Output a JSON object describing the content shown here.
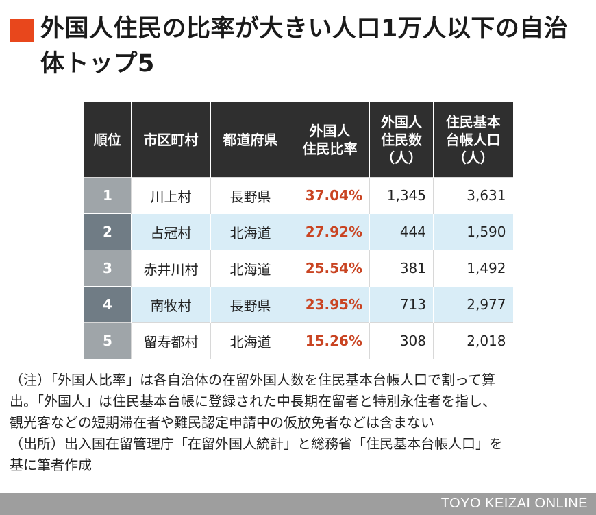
{
  "title": "外国人住民の比率が大きい人口1万人以下の自治体トップ5",
  "chart_data": {
    "type": "table",
    "columns": [
      "順位",
      "市区町村",
      "都道府県",
      "外国人住民比率",
      "外国人住民数（人）",
      "住民基本台帳人口（人）"
    ],
    "header_lines": [
      [
        "順位"
      ],
      [
        "市区町村"
      ],
      [
        "都道府県"
      ],
      [
        "外国人",
        "住民比率"
      ],
      [
        "外国人",
        "住民数",
        "（人）"
      ],
      [
        "住民基本",
        "台帳人口",
        "（人）"
      ]
    ],
    "rows": [
      {
        "rank": "1",
        "municipality": "川上村",
        "prefecture": "長野県",
        "ratio": "37.04%",
        "foreign": "1,345",
        "population": "3,631"
      },
      {
        "rank": "2",
        "municipality": "占冠村",
        "prefecture": "北海道",
        "ratio": "27.92%",
        "foreign": "444",
        "population": "1,590"
      },
      {
        "rank": "3",
        "municipality": "赤井川村",
        "prefecture": "北海道",
        "ratio": "25.54%",
        "foreign": "381",
        "population": "1,492"
      },
      {
        "rank": "4",
        "municipality": "南牧村",
        "prefecture": "長野県",
        "ratio": "23.95%",
        "foreign": "713",
        "population": "2,977"
      },
      {
        "rank": "5",
        "municipality": "留寿都村",
        "prefecture": "北海道",
        "ratio": "15.26%",
        "foreign": "308",
        "population": "2,018"
      }
    ]
  },
  "notes": [
    "（注）「外国人比率」は各自治体の在留外国人数を住民基本台帳人口で割って算",
    "出。「外国人」は住民基本台帳に登録された中長期在留者と特別永住者を指し、",
    "観光客などの短期滞在者や難民認定申請中の仮放免者などは含まない",
    "（出所）出入国在留管理庁「在留外国人統計」と総務省「住民基本台帳人口」を",
    "基に筆者作成"
  ],
  "footer": "TOYO KEIZAI ONLINE",
  "colors": {
    "title_mark": "#e8471c",
    "header_bg": "#2f2f2f",
    "ratio_text": "#c94422",
    "rank_odd": "#9fa5a9",
    "rank_even": "#707c85",
    "row_even": "#d9edf7",
    "footer_bg": "#9e9e9e"
  }
}
